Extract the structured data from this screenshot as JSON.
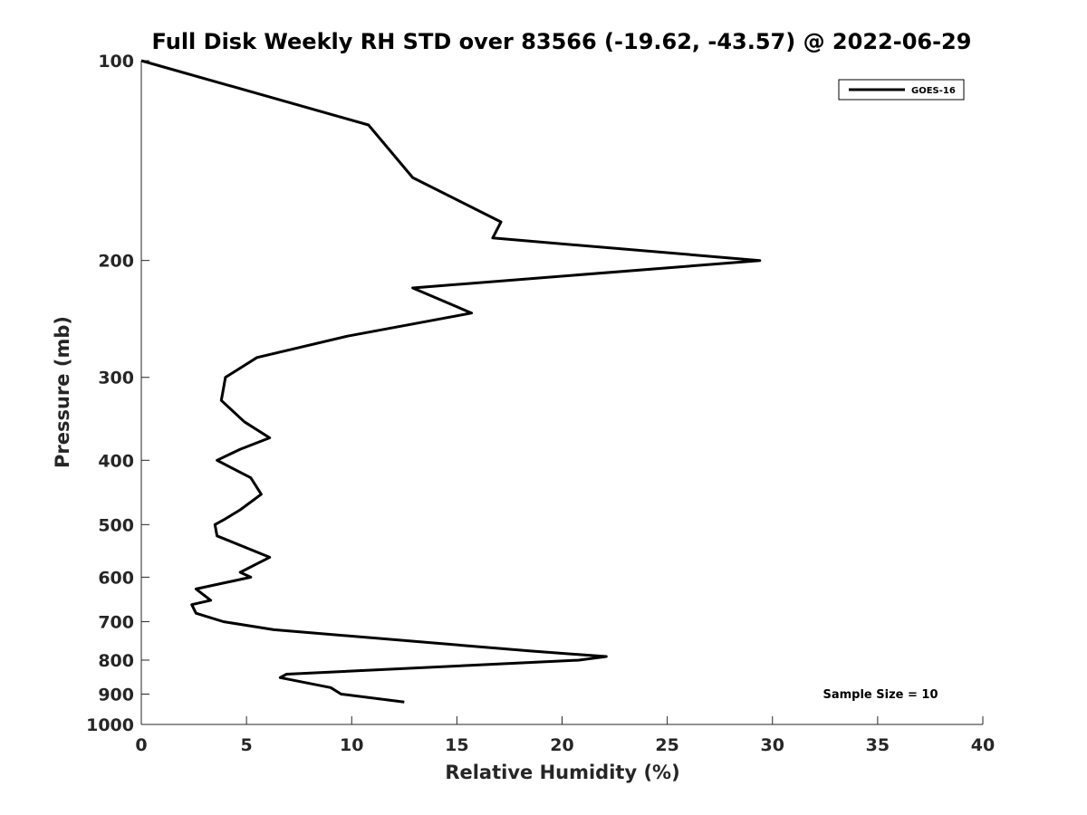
{
  "chart_data": {
    "type": "line",
    "title": "Full Disk Weekly RH STD over 83566 (-19.62, -43.57) @ 2022-06-29",
    "xlabel": "Relative Humidity (%)",
    "ylabel": "Pressure (mb)",
    "xlim": [
      0,
      40
    ],
    "ylim": [
      100,
      1000
    ],
    "yscale": "log",
    "y_reversed": true,
    "grid": false,
    "x_ticks": [
      0,
      5,
      10,
      15,
      20,
      25,
      30,
      35,
      40
    ],
    "y_ticks": [
      100,
      200,
      300,
      400,
      500,
      600,
      700,
      800,
      900,
      1000
    ],
    "legend": {
      "position": "top-right",
      "entries": [
        "GOES-16"
      ]
    },
    "annotation": "Sample Size = 10",
    "series": [
      {
        "name": "GOES-16",
        "color": "#000000",
        "points": [
          {
            "x": 0.0,
            "p": 100
          },
          {
            "x": 10.8,
            "p": 125
          },
          {
            "x": 12.9,
            "p": 150
          },
          {
            "x": 17.1,
            "p": 175
          },
          {
            "x": 16.7,
            "p": 185
          },
          {
            "x": 29.4,
            "p": 200
          },
          {
            "x": 12.9,
            "p": 220
          },
          {
            "x": 15.7,
            "p": 240
          },
          {
            "x": 9.8,
            "p": 260
          },
          {
            "x": 5.5,
            "p": 280
          },
          {
            "x": 4.0,
            "p": 300
          },
          {
            "x": 3.8,
            "p": 325
          },
          {
            "x": 4.9,
            "p": 350
          },
          {
            "x": 6.1,
            "p": 370
          },
          {
            "x": 4.7,
            "p": 385
          },
          {
            "x": 3.6,
            "p": 400
          },
          {
            "x": 5.2,
            "p": 425
          },
          {
            "x": 5.7,
            "p": 450
          },
          {
            "x": 4.7,
            "p": 475
          },
          {
            "x": 4.0,
            "p": 490
          },
          {
            "x": 3.5,
            "p": 500
          },
          {
            "x": 3.6,
            "p": 520
          },
          {
            "x": 6.1,
            "p": 560
          },
          {
            "x": 4.7,
            "p": 590
          },
          {
            "x": 5.2,
            "p": 600
          },
          {
            "x": 2.6,
            "p": 625
          },
          {
            "x": 3.3,
            "p": 650
          },
          {
            "x": 2.4,
            "p": 660
          },
          {
            "x": 2.6,
            "p": 680
          },
          {
            "x": 3.9,
            "p": 700
          },
          {
            "x": 6.3,
            "p": 720
          },
          {
            "x": 18.5,
            "p": 775
          },
          {
            "x": 22.1,
            "p": 790
          },
          {
            "x": 20.8,
            "p": 800
          },
          {
            "x": 6.9,
            "p": 840
          },
          {
            "x": 6.6,
            "p": 850
          },
          {
            "x": 9.0,
            "p": 880
          },
          {
            "x": 9.5,
            "p": 900
          },
          {
            "x": 12.5,
            "p": 925
          }
        ]
      }
    ]
  }
}
